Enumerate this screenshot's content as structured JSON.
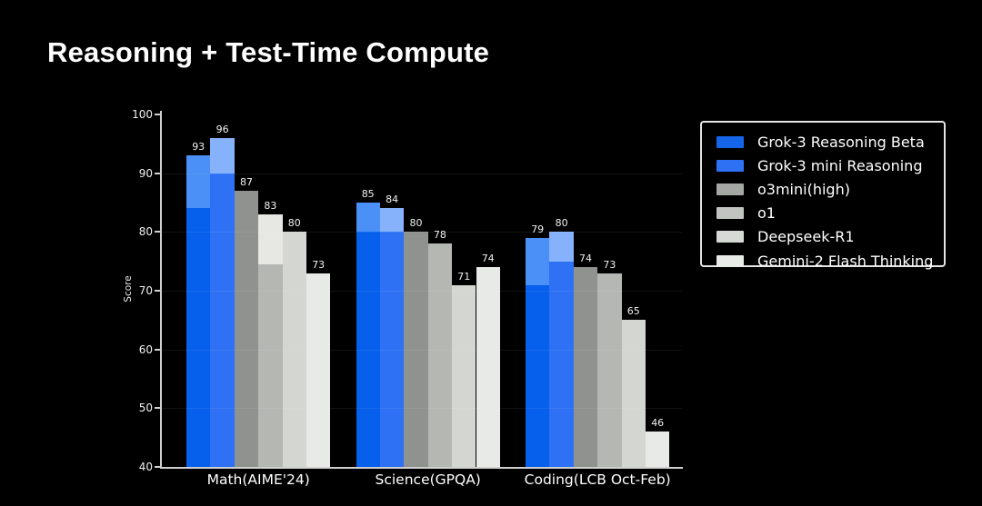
{
  "title": "Reasoning + Test-Time Compute",
  "chart_data": {
    "type": "bar",
    "title": "Reasoning + Test-Time Compute",
    "ylabel": "Score",
    "ylim": [
      40,
      100
    ],
    "yticks": [
      40,
      50,
      60,
      70,
      80,
      90,
      100
    ],
    "grid": "faint horizontal lines at each ytick",
    "legend_position": "upper right, boxed",
    "categories": [
      "Math(AIME'24)",
      "Science(GPQA)",
      "Coding(LCB Oct-Feb)"
    ],
    "series": [
      {
        "name": "Grok-3 Reasoning Beta",
        "legend_color": "#1565E8",
        "color": "#0660EC",
        "shaded_top_color": "#4A90F6",
        "values": [
          93,
          85,
          79
        ],
        "solid_portion": [
          84,
          80,
          71
        ]
      },
      {
        "name": "Grok-3 mini Reasoning",
        "legend_color": "#2E71F5",
        "color": "#2E71F5",
        "shaded_top_color": "#85B2FA",
        "values": [
          96,
          84,
          80
        ],
        "solid_portion": [
          90,
          80,
          75
        ]
      },
      {
        "name": "o3mini(high)",
        "legend_color": "#A5A7A4",
        "color": "#909290",
        "shaded_top_color": null,
        "values": [
          87,
          80,
          74
        ],
        "solid_portion": [
          87,
          80,
          74
        ]
      },
      {
        "name": "o1",
        "legend_color": "#C2C4C1",
        "color": "#B4B7B2",
        "shaded_top_color": "#E7E7E3",
        "values": [
          83,
          78,
          73
        ],
        "solid_portion": [
          74.5,
          78,
          73
        ]
      },
      {
        "name": "Deepseek-R1",
        "legend_color": "#D6D9D6",
        "color": "#D3D6D1",
        "shaded_top_color": null,
        "values": [
          80,
          71,
          65
        ],
        "solid_portion": [
          80,
          71,
          65
        ]
      },
      {
        "name": "Gemini-2 Flash Thinking",
        "legend_color": "#E9EBE8",
        "color": "#E8EAE7",
        "shaded_top_color": null,
        "values": [
          73,
          74,
          46
        ],
        "solid_portion": [
          73,
          74,
          46
        ]
      }
    ]
  }
}
